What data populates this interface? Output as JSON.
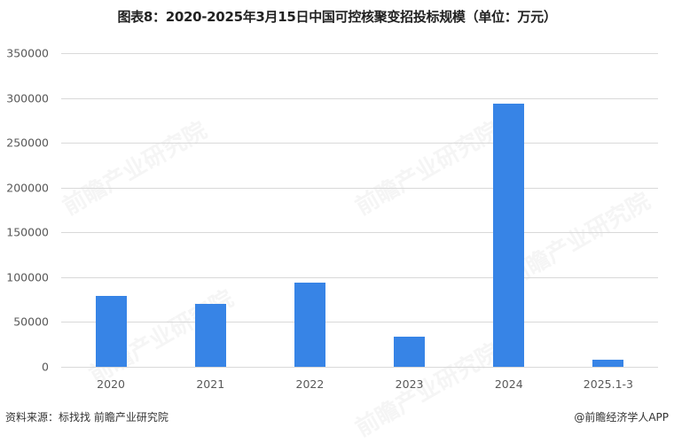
{
  "header": {
    "title": "图表8：2020-2025年3月15日中国可控核聚变招投标规模（单位：万元）"
  },
  "footer": {
    "source": "资料来源：标找找 前瞻产业研究院",
    "credit": "@前瞻经济学人APP"
  },
  "watermark": {
    "text": "前瞻产业研究院"
  },
  "style": {
    "bar_color": "#3784e6",
    "grid_color": "#d9d9d9"
  },
  "chart_data": {
    "type": "bar",
    "title": "图表8：2020-2025年3月15日中国可控核聚变招投标规模（单位：万元）",
    "xlabel": "",
    "ylabel": "",
    "categories": [
      "2020",
      "2021",
      "2022",
      "2023",
      "2024",
      "2025.1-3"
    ],
    "values": [
      79000,
      70000,
      94000,
      33600,
      293500,
      8000
    ],
    "ylim": [
      0,
      350000
    ],
    "yticks": [
      "350000",
      "300000",
      "250000",
      "200000",
      "150000",
      "100000",
      "50000",
      "0"
    ],
    "grid": true,
    "legend": "none"
  }
}
